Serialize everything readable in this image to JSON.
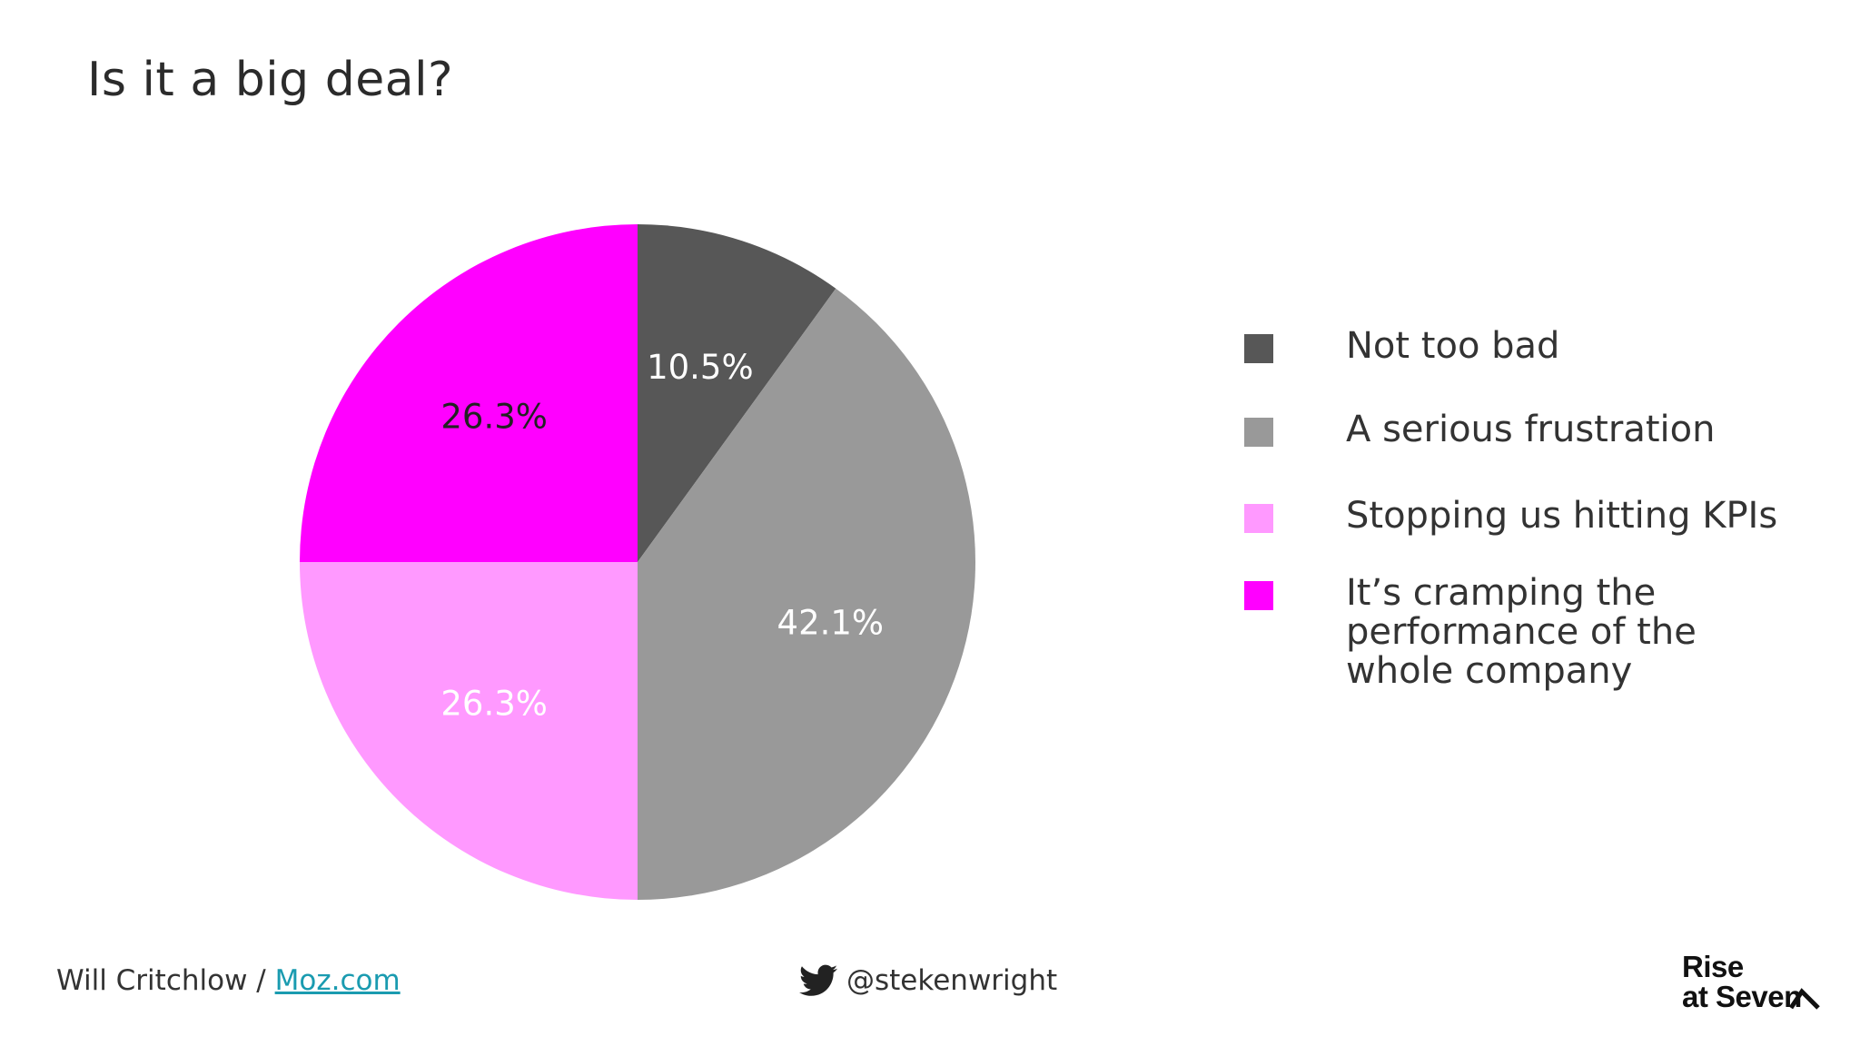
{
  "slide": {
    "title": "Is it a big deal?"
  },
  "chart_data": {
    "type": "pie",
    "start_angle_deg": 0,
    "direction": "clockwise",
    "slices": [
      {
        "label": "Not too bad",
        "value": 10.5,
        "display": "10.5%",
        "color": "#575757",
        "label_color": "#ffffff"
      },
      {
        "label": "A serious frustration",
        "value": 42.1,
        "display": "42.1%",
        "color": "#999999",
        "label_color": "#ffffff"
      },
      {
        "label": "Stopping us hitting KPIs",
        "value": 26.3,
        "display": "26.3%",
        "color": "#ff99ff",
        "label_color": "#ffffff"
      },
      {
        "label": "It’s cramping the performance of the whole company",
        "value": 26.3,
        "display": "26.3%",
        "color": "#ff00ff",
        "label_color": "#222222"
      }
    ],
    "legend_placement": "right"
  },
  "legend": {
    "items": [
      {
        "label": "Not too bad",
        "color": "#575757"
      },
      {
        "label": "A serious frustration",
        "color": "#999999"
      },
      {
        "label": "Stopping us hitting KPIs",
        "color": "#ff99ff"
      },
      {
        "label": "It’s cramping the performance of the whole company",
        "color": "#ff00ff"
      }
    ]
  },
  "footer": {
    "author": "Will Critchlow / ",
    "link_text": "Moz.com",
    "twitter_icon": "twitter-bird-icon",
    "twitter_handle": "@stekenwright",
    "logo_line1": "Rise",
    "logo_line2": "at Seven"
  }
}
